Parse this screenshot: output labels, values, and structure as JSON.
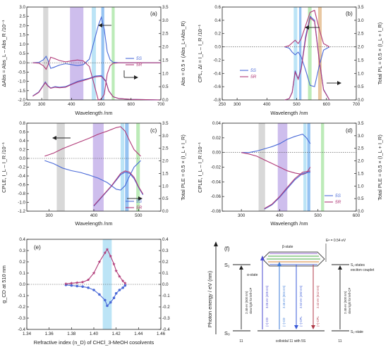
{
  "colors": {
    "s5": "#4a6ad8",
    "r5": "#b03a78",
    "gray_band": "#c8c8c8",
    "purple_band": "#b9a2e6",
    "cyan_band": "#9fd8f2",
    "blue_band": "#6aa9ec",
    "green_band": "#9fe39a",
    "orange_band": "#e0b07a"
  },
  "chart_data": [
    {
      "id": "a",
      "type": "line",
      "panel_label": "(a)",
      "xlabel": "Wavelength /nm",
      "ylabel_left": "ΔAbs = Abs_L – Abs_R /10⁻¹",
      "ylabel_right": "Abs = 0.5 × (Abs_L+Abs_R)",
      "xlim": [
        250,
        700
      ],
      "ylim_left": [
        -2.0,
        3.0
      ],
      "ylim_right": [
        0.0,
        3.5
      ],
      "xticks": [
        "250",
        "300",
        "400",
        "500",
        "600",
        "700"
      ],
      "yticks_left": [
        "-2.0",
        "-1.5",
        "-1.0",
        "-0.5",
        "0.0",
        "0.5",
        "1.0",
        "1.5",
        "2.0",
        "2.5",
        "3.0"
      ],
      "yticks_right": [
        "0.0",
        "0.5",
        "1.0",
        "1.5",
        "2.0",
        "2.5",
        "3.0",
        "3.5"
      ],
      "legend": [
        "5S",
        "5R"
      ],
      "series": [
        {
          "name": "5S",
          "axis": "left",
          "x": [
            270,
            290,
            305,
            315,
            322,
            330,
            340,
            360,
            380,
            400,
            420,
            440,
            460,
            480,
            490,
            500,
            510,
            520,
            530,
            540,
            560,
            600,
            650,
            700
          ],
          "y": [
            0.0,
            0.02,
            0.15,
            0.35,
            0.1,
            -0.3,
            -0.25,
            -0.12,
            -0.05,
            -0.1,
            -0.15,
            -0.1,
            0.2,
            1.4,
            2.0,
            2.45,
            1.8,
            0.6,
            0.15,
            0.03,
            0.0,
            0.0,
            0.0,
            0.0
          ]
        },
        {
          "name": "5R",
          "axis": "left",
          "x": [
            270,
            290,
            305,
            315,
            322,
            330,
            340,
            360,
            380,
            400,
            420,
            440,
            460,
            480,
            490,
            500,
            510,
            520,
            530,
            540,
            560,
            600,
            650,
            700
          ],
          "y": [
            0.0,
            -0.02,
            -0.15,
            -0.35,
            -0.1,
            0.3,
            0.25,
            0.12,
            0.05,
            0.1,
            0.15,
            0.1,
            -0.2,
            -1.4,
            -2.0,
            -1.95,
            -1.7,
            -0.6,
            -0.15,
            -0.03,
            0.0,
            0.0,
            0.0,
            0.0
          ]
        },
        {
          "name": "5S",
          "axis": "right",
          "x": [
            270,
            290,
            305,
            312,
            320,
            330,
            345,
            360,
            380,
            400,
            420,
            440,
            460,
            480,
            500,
            515,
            525,
            540,
            560,
            600,
            650,
            700
          ],
          "y": [
            0.15,
            0.3,
            0.55,
            0.68,
            0.55,
            0.45,
            0.5,
            0.48,
            0.5,
            0.6,
            0.7,
            0.76,
            0.82,
            0.9,
            0.92,
            0.72,
            0.35,
            0.12,
            0.05,
            0.02,
            0.01,
            0.0
          ]
        },
        {
          "name": "5R",
          "axis": "right",
          "x": [
            270,
            290,
            305,
            312,
            320,
            330,
            345,
            360,
            380,
            400,
            420,
            440,
            460,
            480,
            500,
            515,
            525,
            540,
            560,
            600,
            650,
            700
          ],
          "y": [
            0.14,
            0.28,
            0.53,
            0.65,
            0.53,
            0.44,
            0.48,
            0.46,
            0.48,
            0.58,
            0.67,
            0.73,
            0.8,
            0.87,
            0.89,
            0.7,
            0.34,
            0.12,
            0.05,
            0.02,
            0.01,
            0.0
          ]
        }
      ],
      "bands_x": [
        [
          305,
          322
        ],
        [
          395,
          440
        ],
        [
          468,
          482
        ],
        [
          500,
          510
        ],
        [
          535,
          545
        ]
      ]
    },
    {
      "id": "b",
      "type": "line",
      "panel_label": "(b)",
      "xlabel": "Wavelength /nm",
      "ylabel_left": "CPL, ΔI = I_L – I_R /10⁻¹",
      "ylabel_right": "Total PL = 0.5 × (I_L + I_R)",
      "xlim": [
        250,
        700
      ],
      "ylim_left": [
        -0.8,
        0.6
      ],
      "ylim_right": [
        0.0,
        3.5
      ],
      "xticks": [
        "250",
        "300",
        "400",
        "500",
        "600",
        "700"
      ],
      "yticks_left": [
        "-0.8",
        "-0.6",
        "-0.4",
        "-0.2",
        "0.0",
        "0.2",
        "0.4",
        "0.6"
      ],
      "yticks_right": [
        "0.0",
        "0.5",
        "1.0",
        "1.5",
        "2.0",
        "2.5",
        "3.0",
        "3.5"
      ],
      "legend": [
        "5S",
        "5R"
      ],
      "series": [
        {
          "name": "5S",
          "axis": "left",
          "x": [
            460,
            475,
            485,
            495,
            505,
            515,
            530,
            545,
            560,
            575,
            590,
            610
          ],
          "y": [
            0.0,
            -0.02,
            -0.08,
            -0.12,
            -0.08,
            -0.15,
            -0.35,
            -0.58,
            -0.6,
            -0.3,
            -0.05,
            0.0
          ]
        },
        {
          "name": "5R",
          "axis": "left",
          "x": [
            460,
            475,
            485,
            495,
            505,
            515,
            530,
            545,
            560,
            575,
            590,
            610
          ],
          "y": [
            0.0,
            0.02,
            0.06,
            0.1,
            0.05,
            0.12,
            0.32,
            0.52,
            0.55,
            0.28,
            0.05,
            0.0
          ]
        },
        {
          "name": "5S",
          "axis": "right",
          "x": [
            460,
            475,
            485,
            495,
            505,
            515,
            530,
            545,
            560,
            575,
            590,
            610
          ],
          "y": [
            0.0,
            0.05,
            0.3,
            1.1,
            0.8,
            1.2,
            2.4,
            3.15,
            3.0,
            1.6,
            0.4,
            0.0
          ]
        },
        {
          "name": "5R",
          "axis": "right",
          "x": [
            460,
            475,
            485,
            495,
            505,
            515,
            530,
            545,
            560,
            575,
            590,
            610
          ],
          "y": [
            0.0,
            0.05,
            0.28,
            1.05,
            0.78,
            1.15,
            2.3,
            3.1,
            2.95,
            1.55,
            0.38,
            0.0
          ]
        }
      ],
      "bands_x": [
        [
          490,
          502
        ],
        [
          508,
          516
        ],
        [
          538,
          550
        ],
        [
          572,
          584
        ]
      ]
    },
    {
      "id": "c",
      "type": "line",
      "panel_label": "(c)",
      "xlabel": "Wavelength /nm",
      "ylabel_left": "CPLE, I_L – I_R /10⁻¹",
      "ylabel_right": "Total PLE = 0.5 × (I_L + I_R)",
      "xlim": [
        250,
        550
      ],
      "ylim_left": [
        -1.2,
        0.8
      ],
      "ylim_right": [
        0.0,
        3.5
      ],
      "xticks": [
        "300",
        "400",
        "500"
      ],
      "yticks_left": [
        "-1.2",
        "-1.0",
        "-0.8",
        "-0.6",
        "-0.4",
        "-0.2",
        "0.0",
        "0.2",
        "0.4",
        "0.6",
        "0.8"
      ],
      "yticks_right": [
        "0.0",
        "0.5",
        "1.0",
        "1.5",
        "2.0",
        "2.5",
        "3.0",
        "3.5"
      ],
      "legend": [
        "5S",
        "5R"
      ],
      "series": [
        {
          "name": "5S",
          "axis": "left",
          "x": [
            290,
            310,
            330,
            350,
            370,
            390,
            410,
            430,
            450,
            460,
            470,
            480,
            490,
            500,
            505
          ],
          "y": [
            -0.05,
            -0.12,
            -0.22,
            -0.28,
            -0.32,
            -0.38,
            -0.45,
            -0.55,
            -0.7,
            -0.72,
            -0.62,
            -0.4,
            -0.2,
            -0.1,
            -0.05
          ]
        },
        {
          "name": "5R",
          "axis": "left",
          "x": [
            290,
            310,
            330,
            350,
            370,
            390,
            410,
            430,
            450,
            460,
            470,
            480,
            490,
            500,
            505
          ],
          "y": [
            0.05,
            0.12,
            0.22,
            0.3,
            0.38,
            0.46,
            0.55,
            0.62,
            0.7,
            0.72,
            0.62,
            0.4,
            0.2,
            0.1,
            0.05
          ]
        },
        {
          "name": "5S",
          "axis": "right",
          "x": [
            400,
            420,
            440,
            460,
            470,
            480,
            490,
            500,
            510
          ],
          "y": [
            0.2,
            0.6,
            1.0,
            1.45,
            1.55,
            1.5,
            1.3,
            0.95,
            0.65
          ]
        },
        {
          "name": "5R",
          "axis": "right",
          "x": [
            400,
            420,
            440,
            460,
            470,
            480,
            490,
            500,
            510
          ],
          "y": [
            0.22,
            0.62,
            1.02,
            1.5,
            1.6,
            1.55,
            1.35,
            0.98,
            0.68
          ]
        }
      ],
      "bands_x": [
        [
          317,
          335
        ],
        [
          398,
          422
        ],
        [
          460,
          468
        ],
        [
          470,
          478
        ],
        [
          495,
          503
        ]
      ]
    },
    {
      "id": "d",
      "type": "line",
      "panel_label": "(d)",
      "xlabel": "Wavelength /nm",
      "ylabel_left": "CPLE, I_L – I_R /10⁻¹",
      "ylabel_right": "Total PLE = 0.5 × (I_L + I_R)",
      "xlim": [
        250,
        600
      ],
      "ylim_left": [
        -0.08,
        0.04
      ],
      "ylim_right": [
        0.0,
        3.5
      ],
      "xticks": [
        "300",
        "400",
        "500",
        "600"
      ],
      "yticks_left": [
        "-0.08",
        "-0.06",
        "-0.04",
        "-0.02",
        "0.00",
        "0.02",
        "0.04"
      ],
      "yticks_right": [
        "0.0",
        "0.5",
        "1.0",
        "1.5",
        "2.0",
        "2.5",
        "3.0",
        "3.5"
      ],
      "legend": [
        "5S",
        "5R"
      ],
      "series": [
        {
          "name": "5S",
          "axis": "left",
          "x": [
            300,
            320,
            340,
            360,
            380,
            400,
            420,
            440,
            460,
            470,
            480
          ],
          "y": [
            0.0,
            0.0,
            0.002,
            0.005,
            0.008,
            0.012,
            0.018,
            0.022,
            0.025,
            0.02,
            0.012
          ]
        },
        {
          "name": "5R",
          "axis": "left",
          "x": [
            300,
            320,
            340,
            360,
            380,
            400,
            420,
            440,
            460,
            470,
            480
          ],
          "y": [
            0.0,
            -0.002,
            -0.005,
            -0.01,
            -0.015,
            -0.02,
            -0.025,
            -0.028,
            -0.03,
            -0.028,
            -0.02
          ]
        },
        {
          "name": "5S",
          "axis": "right",
          "x": [
            360,
            380,
            400,
            420,
            440,
            460,
            480
          ],
          "y": [
            0.08,
            0.25,
            0.55,
            0.9,
            1.25,
            1.5,
            1.55
          ]
        },
        {
          "name": "5R",
          "axis": "right",
          "x": [
            360,
            380,
            400,
            420,
            440,
            460,
            480
          ],
          "y": [
            0.1,
            0.28,
            0.58,
            0.95,
            1.3,
            1.55,
            1.6
          ]
        }
      ],
      "bands_x": [
        [
          345,
          362
        ],
        [
          395,
          420
        ],
        [
          462,
          470
        ],
        [
          472,
          480
        ],
        [
          508,
          516
        ]
      ]
    },
    {
      "id": "e",
      "type": "scatter",
      "panel_label": "(e)",
      "xlabel": "Refractive index (n_D) of CHCl_3-MeOH cosolvents",
      "ylabel_left": "g_CD at 510 nm",
      "xlim": [
        1.34,
        1.46
      ],
      "ylim_left": [
        -0.4,
        0.4
      ],
      "xticks": [
        "1.34",
        "1.36",
        "1.38",
        "1.40",
        "1.42",
        "1.44",
        "1.46"
      ],
      "yticks_left": [
        "-0.4",
        "-0.3",
        "-0.2",
        "-0.1",
        "0.0",
        "0.1",
        "0.2",
        "0.3",
        "0.4"
      ],
      "yticks_right": [
        "-0.4",
        "-0.3",
        "-0.2",
        "-0.1",
        "0.0",
        "0.1",
        "0.2",
        "0.3",
        "0.4"
      ],
      "series": [
        {
          "name": "5S",
          "x": [
            1.375,
            1.38,
            1.385,
            1.39,
            1.395,
            1.4,
            1.405,
            1.41,
            1.412,
            1.415,
            1.418,
            1.42,
            1.423,
            1.426,
            1.428
          ],
          "y": [
            -0.005,
            -0.01,
            -0.015,
            -0.02,
            -0.03,
            -0.05,
            -0.09,
            -0.14,
            -0.19,
            -0.16,
            -0.12,
            -0.08,
            -0.05,
            -0.03,
            -0.01
          ]
        },
        {
          "name": "5R",
          "x": [
            1.375,
            1.38,
            1.385,
            1.39,
            1.395,
            1.4,
            1.405,
            1.41,
            1.412,
            1.415,
            1.418,
            1.42,
            1.423,
            1.426,
            1.428
          ],
          "y": [
            0.005,
            0.01,
            0.015,
            0.02,
            0.04,
            0.1,
            0.2,
            0.28,
            0.31,
            0.25,
            0.18,
            0.12,
            0.07,
            0.03,
            0.01
          ]
        }
      ],
      "bands_x": [
        [
          1.408,
          1.416
        ]
      ]
    }
  ],
  "energy_diagram": {
    "panel_label": "(f)",
    "ylabel": "Photon energy / eV (nm)",
    "beta_state": "β-state",
    "alpha_state": "α-state",
    "s1": "S₁",
    "s0": "S₀",
    "s1_states": "S₁-states",
    "exciton_couplet": "exciton couplet",
    "s0_state": "S₀-state",
    "ea": "Eᵃ = 0.54 eV",
    "left_arrow_label": "2.48 eV (500 nm)",
    "left_arrow_sub": "slow light for left-CP",
    "right_arrow_label": "2.48 eV (500 nm)",
    "right_arrow_sub": "slow light for left-CP",
    "cd_label": "(+)-CD",
    "cd_value": "3.06 eV (405 nm)",
    "cpl_labels": [
      "(–)-CD",
      "(–)-CPL",
      "(+)-CPL"
    ],
    "cpl_values": [
      "2.46 eV (504 nm)",
      "2.52 eV (492 nm)",
      "2.42 eV (512 nm)"
    ],
    "bottom_left": "11",
    "bottom_mid": "colloidal 11 with 5S",
    "bottom_right": "11"
  }
}
